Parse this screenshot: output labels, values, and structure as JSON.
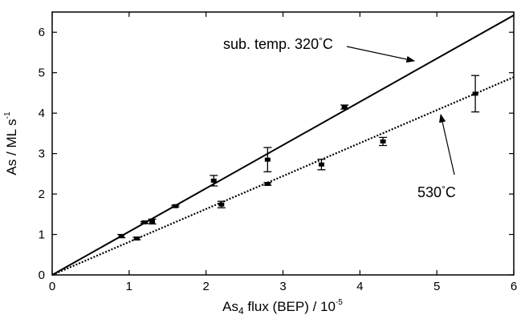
{
  "chart_data": {
    "type": "scatter",
    "xlabel": {
      "main": "As",
      "sub": "4",
      "rest": " flux (BEP)  /  10",
      "exp": "-5"
    },
    "ylabel": {
      "main": "As / ML s",
      "exp": "-1"
    },
    "xlim": [
      0,
      6
    ],
    "ylim": [
      0,
      6.5
    ],
    "xticks": [
      0,
      1,
      2,
      3,
      4,
      5,
      6
    ],
    "yticks": [
      0,
      1,
      2,
      3,
      4,
      5,
      6
    ],
    "grid": false,
    "series": [
      {
        "fit_slope": 1.07,
        "line_style": "solid",
        "points": [
          {
            "x": 0.9,
            "y": 0.96,
            "err": 0.04
          },
          {
            "x": 1.2,
            "y": 1.3,
            "err": 0.02
          },
          {
            "x": 1.3,
            "y": 1.32,
            "err": 0.06
          },
          {
            "x": 1.6,
            "y": 1.7,
            "err": 0.02
          },
          {
            "x": 2.1,
            "y": 2.33,
            "err": 0.13
          },
          {
            "x": 2.8,
            "y": 2.85,
            "err": 0.3
          },
          {
            "x": 3.8,
            "y": 4.15,
            "err": 0.05
          }
        ]
      },
      {
        "fit_slope": 0.815,
        "line_style": "dotted",
        "points": [
          {
            "x": 1.1,
            "y": 0.9,
            "err": 0.03
          },
          {
            "x": 2.2,
            "y": 1.74,
            "err": 0.08
          },
          {
            "x": 2.8,
            "y": 2.25,
            "err": 0.03
          },
          {
            "x": 3.5,
            "y": 2.73,
            "err": 0.13
          },
          {
            "x": 4.3,
            "y": 3.3,
            "err": 0.1
          },
          {
            "x": 5.5,
            "y": 4.48,
            "err": 0.45
          }
        ]
      }
    ],
    "annotations": [
      {
        "text": "sub. temp. 320",
        "deg": "°",
        "unit": "C",
        "arrow_to": {
          "x": 4.65,
          "y": 4.95
        }
      },
      {
        "text": "530",
        "deg": "°",
        "unit": "C",
        "arrow_to": {
          "x": 4.55,
          "y": 3.95
        }
      }
    ]
  }
}
